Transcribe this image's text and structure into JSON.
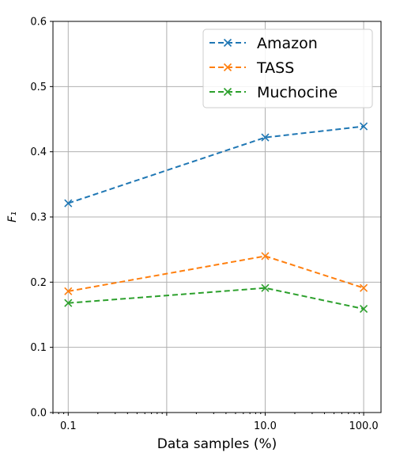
{
  "chart_data": {
    "type": "line",
    "xscale": "log",
    "x": [
      0.1,
      10.0,
      100.0
    ],
    "x_tick_labels": [
      "0.1",
      "10.0",
      "100.0"
    ],
    "y_ticks": [
      "0.0",
      "0.1",
      "0.2",
      "0.3",
      "0.4",
      "0.5",
      "0.6"
    ],
    "xlim": [
      0.07,
      150
    ],
    "ylim": [
      0.0,
      0.6
    ],
    "xlabel": "Data samples (%)",
    "ylabel": "F₁",
    "grid": true,
    "legend_position": "top-right",
    "series": [
      {
        "name": "Amazon",
        "values": [
          0.321,
          0.422,
          0.439
        ],
        "color": "#1f77b4",
        "marker": "x",
        "linestyle": "dashed"
      },
      {
        "name": "TASS",
        "values": [
          0.186,
          0.24,
          0.191
        ],
        "color": "#ff7f0e",
        "marker": "x",
        "linestyle": "dashed"
      },
      {
        "name": "Muchocine",
        "values": [
          0.168,
          0.191,
          0.159
        ],
        "color": "#2ca02c",
        "marker": "x",
        "linestyle": "dashed"
      }
    ]
  }
}
